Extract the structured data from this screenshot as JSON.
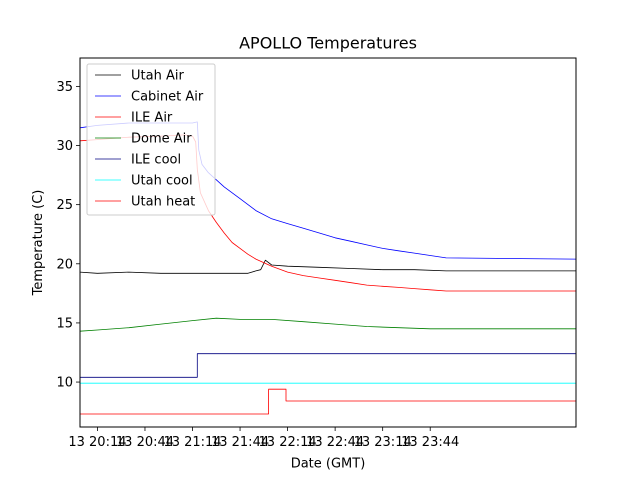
{
  "chart_data": {
    "type": "line",
    "title": "APOLLO Temperatures",
    "xlabel": "Date (GMT)",
    "ylabel": "Temperature (C)",
    "x_unit": "minutes since 13 20:14 GMT",
    "xlim": [
      -11,
      302
    ],
    "ylim": [
      6.2,
      37.4
    ],
    "x_ticks": [
      {
        "value": 0,
        "label": "13 20:14"
      },
      {
        "value": 30,
        "label": "13 20:44"
      },
      {
        "value": 60,
        "label": "13 21:14"
      },
      {
        "value": 90,
        "label": "13 21:44"
      },
      {
        "value": 120,
        "label": "13 22:14"
      },
      {
        "value": 150,
        "label": "13 22:44"
      },
      {
        "value": 180,
        "label": "13 23:14"
      },
      {
        "value": 210,
        "label": "13 23:44"
      }
    ],
    "y_ticks": [
      {
        "value": 10,
        "label": "10"
      },
      {
        "value": 15,
        "label": "15"
      },
      {
        "value": 20,
        "label": "20"
      },
      {
        "value": 25,
        "label": "25"
      },
      {
        "value": 30,
        "label": "30"
      },
      {
        "value": 35,
        "label": "35"
      }
    ],
    "legend_position": "top-left",
    "series": [
      {
        "name": "Utah Air",
        "color": "#000000",
        "points": [
          [
            -11,
            19.3
          ],
          [
            0,
            19.2
          ],
          [
            20,
            19.3
          ],
          [
            40,
            19.2
          ],
          [
            60,
            19.2
          ],
          [
            80,
            19.2
          ],
          [
            95,
            19.2
          ],
          [
            100,
            19.4
          ],
          [
            103,
            19.5
          ],
          [
            106,
            20.3
          ],
          [
            110,
            19.9
          ],
          [
            120,
            19.8
          ],
          [
            140,
            19.7
          ],
          [
            160,
            19.6
          ],
          [
            180,
            19.5
          ],
          [
            200,
            19.5
          ],
          [
            220,
            19.4
          ],
          [
            302,
            19.4
          ]
        ]
      },
      {
        "name": "Cabinet Air",
        "color": "#0000ff",
        "points": [
          [
            -11,
            31.5
          ],
          [
            0,
            31.7
          ],
          [
            20,
            31.9
          ],
          [
            40,
            31.9
          ],
          [
            60,
            31.9
          ],
          [
            63,
            32.0
          ],
          [
            64,
            29.6
          ],
          [
            66,
            28.4
          ],
          [
            70,
            27.7
          ],
          [
            75,
            27.1
          ],
          [
            80,
            26.5
          ],
          [
            90,
            25.5
          ],
          [
            100,
            24.5
          ],
          [
            110,
            23.8
          ],
          [
            120,
            23.4
          ],
          [
            130,
            23.0
          ],
          [
            140,
            22.6
          ],
          [
            150,
            22.2
          ],
          [
            160,
            21.9
          ],
          [
            170,
            21.6
          ],
          [
            180,
            21.3
          ],
          [
            190,
            21.1
          ],
          [
            200,
            20.9
          ],
          [
            210,
            20.7
          ],
          [
            220,
            20.5
          ],
          [
            302,
            20.4
          ]
        ]
      },
      {
        "name": "ILE Air",
        "color": "#ff0000",
        "points": [
          [
            -11,
            30.4
          ],
          [
            0,
            30.5
          ],
          [
            20,
            30.7
          ],
          [
            40,
            30.8
          ],
          [
            55,
            30.9
          ],
          [
            60,
            30.8
          ],
          [
            62,
            30.3
          ],
          [
            63,
            28.0
          ],
          [
            65,
            26.0
          ],
          [
            70,
            24.5
          ],
          [
            75,
            23.5
          ],
          [
            80,
            22.6
          ],
          [
            85,
            21.8
          ],
          [
            90,
            21.3
          ],
          [
            95,
            20.8
          ],
          [
            100,
            20.4
          ],
          [
            110,
            19.8
          ],
          [
            120,
            19.3
          ],
          [
            130,
            19.0
          ],
          [
            140,
            18.8
          ],
          [
            150,
            18.6
          ],
          [
            160,
            18.4
          ],
          [
            170,
            18.2
          ],
          [
            180,
            18.1
          ],
          [
            190,
            18.0
          ],
          [
            200,
            17.9
          ],
          [
            210,
            17.8
          ],
          [
            220,
            17.7
          ],
          [
            302,
            17.7
          ]
        ]
      },
      {
        "name": "Dome Air",
        "color": "#008000",
        "points": [
          [
            -11,
            14.3
          ],
          [
            0,
            14.4
          ],
          [
            20,
            14.6
          ],
          [
            40,
            14.9
          ],
          [
            60,
            15.2
          ],
          [
            75,
            15.4
          ],
          [
            90,
            15.3
          ],
          [
            110,
            15.3
          ],
          [
            130,
            15.1
          ],
          [
            150,
            14.9
          ],
          [
            170,
            14.7
          ],
          [
            190,
            14.6
          ],
          [
            210,
            14.5
          ],
          [
            302,
            14.5
          ]
        ]
      },
      {
        "name": "ILE cool",
        "color": "#000080",
        "points": [
          [
            -11,
            10.4
          ],
          [
            63,
            10.4
          ],
          [
            63,
            12.4
          ],
          [
            302,
            12.4
          ]
        ]
      },
      {
        "name": "Utah cool",
        "color": "#00ffff",
        "points": [
          [
            -11,
            9.9
          ],
          [
            302,
            9.9
          ]
        ]
      },
      {
        "name": "Utah heat",
        "color": "#ff0000",
        "points": [
          [
            -11,
            7.3
          ],
          [
            108,
            7.3
          ],
          [
            108,
            9.4
          ],
          [
            119,
            9.4
          ],
          [
            119,
            8.4
          ],
          [
            302,
            8.4
          ]
        ]
      }
    ]
  }
}
